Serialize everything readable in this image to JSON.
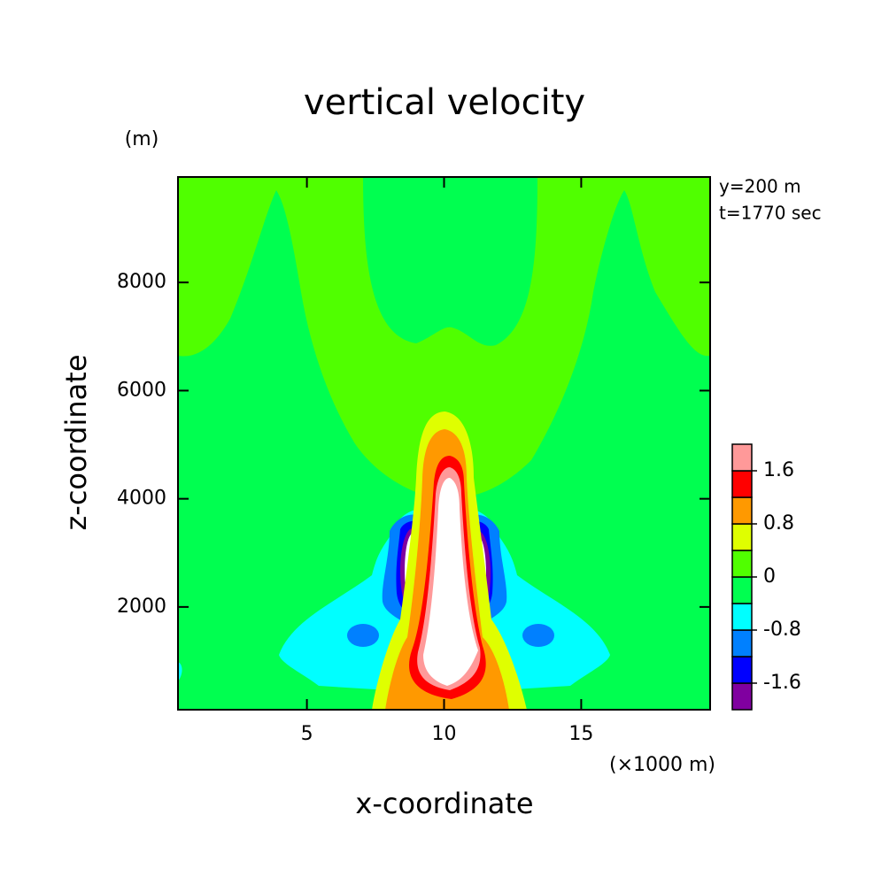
{
  "chart_data": {
    "type": "contour",
    "title": "vertical velocity",
    "y_unit": "(m)",
    "x_unit": "(×1000 m)",
    "xlabel": "x-coordinate",
    "ylabel": "z-coordinate",
    "annotations": [
      "y=200 m",
      "t=1770 sec"
    ],
    "xlim": [
      0.3,
      19.7
    ],
    "xticks": [
      5,
      10,
      15
    ],
    "ylim": [
      100,
      9950
    ],
    "yticks": [
      2000,
      4000,
      6000,
      8000
    ],
    "colorbar": {
      "lim": [
        -2,
        2
      ],
      "levels": [
        -2,
        -1.6,
        -1.2,
        -0.8,
        -0.4,
        0,
        0.4,
        0.8,
        1.2,
        1.6,
        2
      ],
      "colors": [
        "#8000a0",
        "#0000ff",
        "#0080ff",
        "#00ffff",
        "#00ff50",
        "#50ff00",
        "#dfff00",
        "#ff9900",
        "#ff0000",
        "#ff9999"
      ],
      "ticks": [
        -1.6,
        -0.8,
        0,
        0.8,
        1.6
      ]
    }
  }
}
